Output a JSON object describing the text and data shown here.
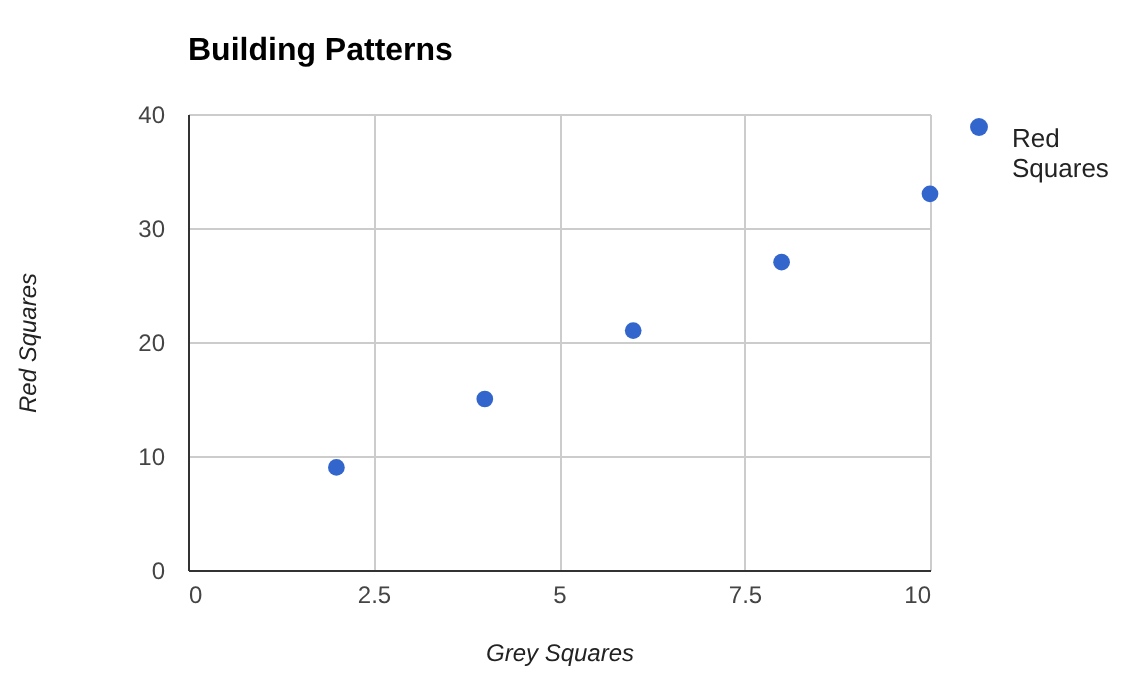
{
  "chart_data": {
    "type": "scatter",
    "title": "Building Patterns",
    "xlabel": "Grey Squares",
    "ylabel": "Red Squares",
    "x": [
      2,
      4,
      6,
      8,
      10
    ],
    "series": [
      {
        "name": "Red Squares",
        "color": "#3366cc",
        "values": [
          9,
          15,
          21,
          27,
          33
        ]
      }
    ],
    "xlim": [
      0,
      10
    ],
    "xticks": [
      0,
      2.5,
      5,
      7.5,
      10
    ],
    "ylim": [
      0,
      40
    ],
    "yticks": [
      0,
      10,
      20,
      30,
      40
    ],
    "grid": true,
    "legend": "right",
    "marker": "circle"
  }
}
